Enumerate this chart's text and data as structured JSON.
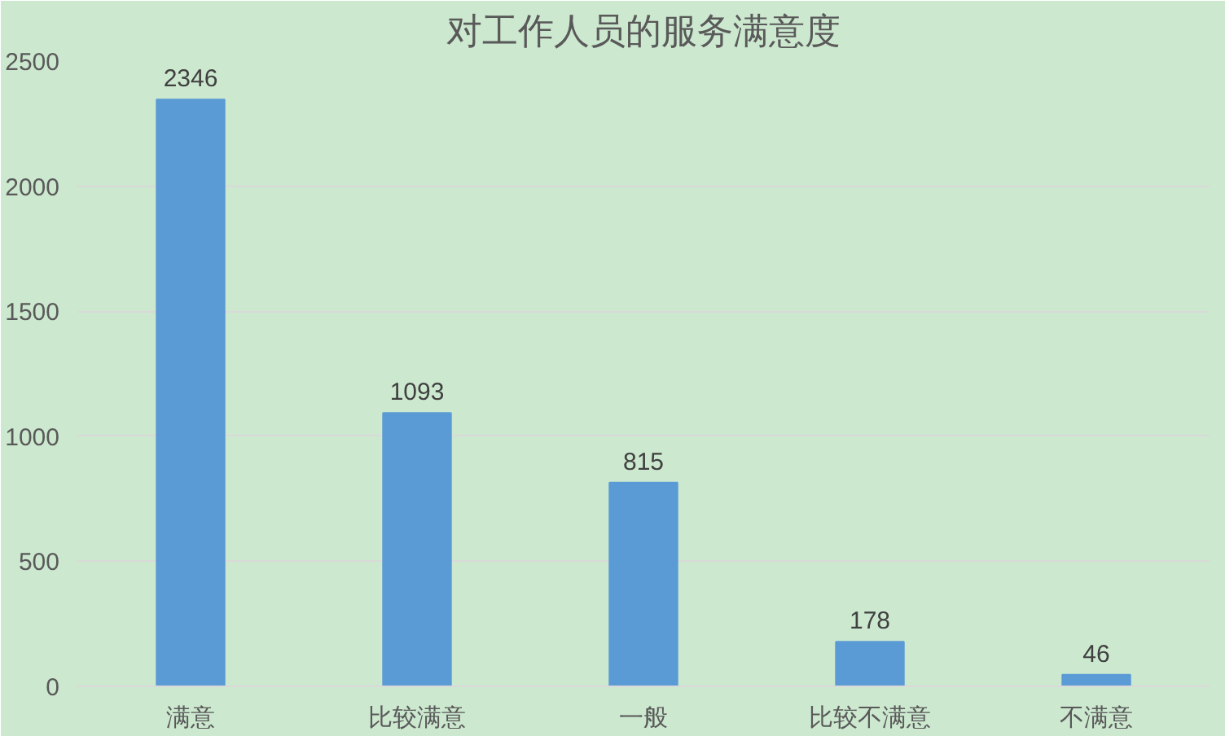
{
  "chart_data": {
    "type": "bar",
    "title": "对工作人员的服务满意度",
    "categories": [
      "满意",
      "比较满意",
      "一般",
      "比较不满意",
      "不满意"
    ],
    "values": [
      2346,
      1093,
      815,
      178,
      46
    ],
    "color": "#5b9bd5",
    "ylim": [
      0,
      2500
    ],
    "yticks": [
      0,
      500,
      1000,
      1500,
      2000,
      2500
    ],
    "grid": "y",
    "data_labels": true
  }
}
